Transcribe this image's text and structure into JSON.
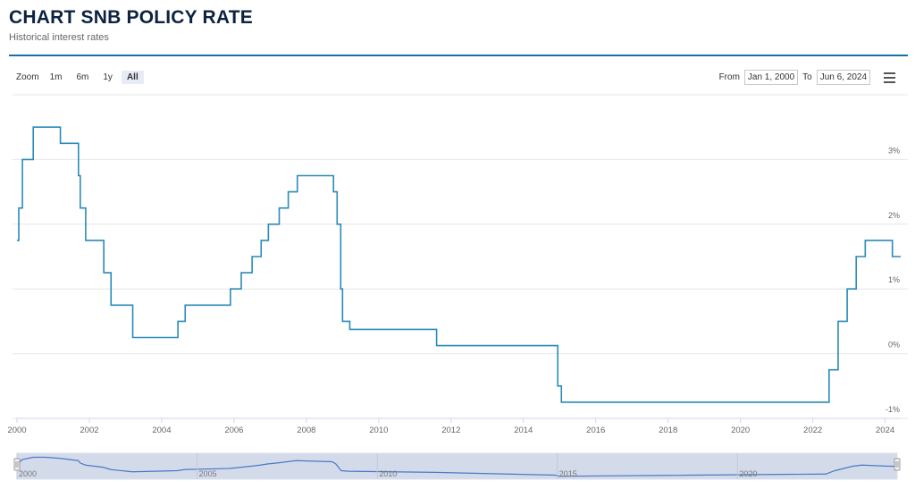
{
  "header": {
    "title": "CHART SNB POLICY RATE",
    "subtitle": "Historical interest rates"
  },
  "toolbar": {
    "zoom_label": "Zoom",
    "zoom_buttons": [
      "1m",
      "6m",
      "1y",
      "All"
    ],
    "active_zoom": "All",
    "from_label": "From",
    "from_value": "Jan 1, 2000",
    "to_label": "To",
    "to_value": "Jun 6, 2024"
  },
  "colors": {
    "line": "#2a8ab8",
    "navigator_fill": "#d3dbeb",
    "navigator_line": "#4a79c5",
    "title": "#0c2340"
  },
  "chart_data": {
    "type": "line",
    "step": true,
    "title": "",
    "xlabel": "",
    "ylabel": "",
    "xlim": [
      2000,
      2024.43
    ],
    "ylim": [
      -1,
      4
    ],
    "x_ticks": [
      "2000",
      "2002",
      "2004",
      "2006",
      "2008",
      "2010",
      "2012",
      "2014",
      "2016",
      "2018",
      "2020",
      "2022",
      "2024"
    ],
    "y_ticks": [
      "3%",
      "2%",
      "1%",
      "0%",
      "-1%"
    ],
    "y_tick_values": [
      3,
      2,
      1,
      0,
      -1
    ],
    "series": [
      {
        "x": [
          2000.0,
          2000.05,
          2000.15,
          2000.45,
          2000.8,
          2001.2,
          2001.7,
          2001.75,
          2001.9,
          2002.4,
          2002.6,
          2003.2,
          2004.45,
          2004.65,
          2005.9,
          2006.2,
          2006.5,
          2006.75,
          2006.95,
          2007.25,
          2007.5,
          2007.75,
          2008.75,
          2008.85,
          2008.95,
          2009.0,
          2009.2,
          2011.6,
          2014.95,
          2015.05,
          2022.45,
          2022.7,
          2022.95,
          2023.2,
          2023.45,
          2024.2,
          2024.43
        ],
        "values": [
          1.75,
          2.25,
          3.0,
          3.5,
          3.5,
          3.25,
          2.75,
          2.25,
          1.75,
          1.25,
          0.75,
          0.25,
          0.5,
          0.75,
          1.0,
          1.25,
          1.5,
          1.75,
          2.0,
          2.25,
          2.5,
          2.75,
          2.5,
          2.0,
          1.0,
          0.5,
          0.375,
          0.125,
          -0.5,
          -0.75,
          -0.25,
          0.5,
          1.0,
          1.5,
          1.75,
          1.5,
          1.5
        ]
      }
    ],
    "navigator": {
      "x_labels": [
        "2000",
        "2005",
        "2010",
        "2015",
        "2020"
      ]
    }
  }
}
